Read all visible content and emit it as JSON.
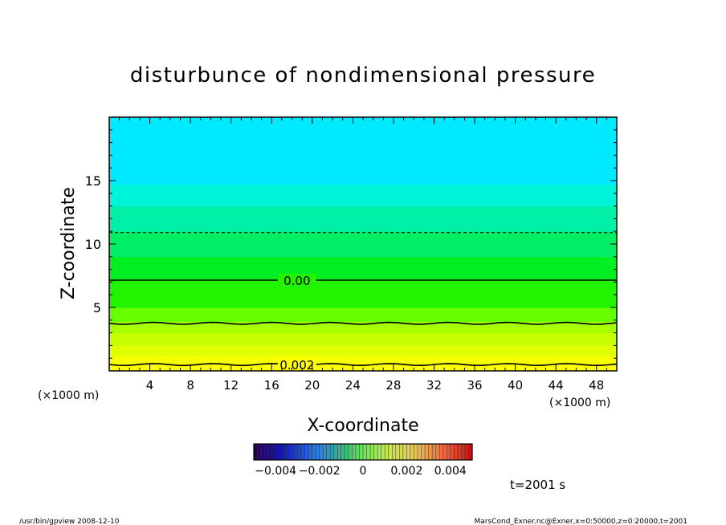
{
  "chart_data": {
    "type": "heatmap",
    "title": "disturbunce of nondimensional pressure",
    "xlabel": "X-coordinate",
    "ylabel": "Z-coordinate",
    "x_unit_left": "(×1000 m)",
    "x_unit_right": "(×1000 m)",
    "xlim": [
      0,
      50
    ],
    "ylim": [
      0,
      20
    ],
    "x_ticks": [
      4,
      8,
      12,
      16,
      20,
      24,
      28,
      32,
      36,
      40,
      44,
      48
    ],
    "x_ticks_labels": [
      "4",
      "8",
      "12",
      "16",
      "20",
      "24",
      "28",
      "32",
      "36",
      "40",
      "44",
      "48"
    ],
    "y_ticks": [
      5,
      10,
      15
    ],
    "y_ticks_labels": [
      "5",
      "10",
      "15"
    ],
    "color_bands": [
      {
        "z0": 0.0,
        "z1": 0.6,
        "color": "#ffff00"
      },
      {
        "z0": 0.6,
        "z1": 1.2,
        "color": "#f6ff00"
      },
      {
        "z0": 1.2,
        "z1": 2.0,
        "color": "#e0ff00"
      },
      {
        "z0": 2.0,
        "z1": 3.0,
        "color": "#c8ff00"
      },
      {
        "z0": 3.0,
        "z1": 3.9,
        "color": "#a8ff00"
      },
      {
        "z0": 3.9,
        "z1": 5.0,
        "color": "#66ff00"
      },
      {
        "z0": 5.0,
        "z1": 7.2,
        "color": "#22f400"
      },
      {
        "z0": 7.2,
        "z1": 9.0,
        "color": "#00ee22"
      },
      {
        "z0": 9.0,
        "z1": 11.0,
        "color": "#00ee66"
      },
      {
        "z0": 11.0,
        "z1": 13.0,
        "color": "#00f0a8"
      },
      {
        "z0": 13.0,
        "z1": 14.7,
        "color": "#00f4d8"
      },
      {
        "z0": 14.7,
        "z1": 20.0,
        "color": "#00eaff"
      }
    ],
    "contours": [
      {
        "z": 0.5,
        "style": "solid",
        "label": "0.002"
      },
      {
        "z": 3.75,
        "style": "solid",
        "label": ""
      },
      {
        "z": 7.15,
        "style": "solid",
        "label": "0.00"
      },
      {
        "z": 10.9,
        "style": "dashed",
        "label": ""
      }
    ],
    "colorbar": {
      "range": [
        -0.005,
        0.005
      ],
      "tick_labels": [
        {
          "v": -0.004,
          "text": "−0.004"
        },
        {
          "v": -0.002,
          "text": "−0.002"
        },
        {
          "v": 0,
          "text": "0"
        },
        {
          "v": 0.002,
          "text": "0.002"
        },
        {
          "v": 0.004,
          "text": "0.004"
        }
      ]
    },
    "time_label": "t=2001 s",
    "footer_left": "/usr/bin/gpview   2008-12-10",
    "footer_right": "MarsCond_Exner.nc@Exner,x=0:50000,z=0:20000,t=2001"
  }
}
